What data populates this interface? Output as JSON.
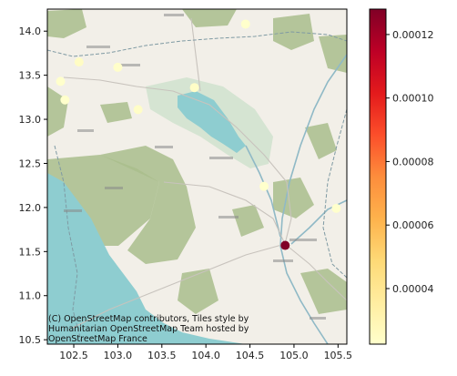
{
  "chart_data": {
    "type": "scatter",
    "title": "",
    "xlabel": "",
    "ylabel": "",
    "xlim": [
      102.2,
      105.6
    ],
    "ylim": [
      10.45,
      14.25
    ],
    "x_ticks": [
      "102.5",
      "103.0",
      "103.5",
      "104.0",
      "104.5",
      "105.0",
      "105.5"
    ],
    "y_ticks": [
      "10.5",
      "11.0",
      "11.5",
      "12.0",
      "12.5",
      "13.0",
      "13.5",
      "14.0"
    ],
    "x_tick_values": [
      102.5,
      103.0,
      103.5,
      104.0,
      104.5,
      105.0,
      105.5
    ],
    "y_tick_values": [
      10.5,
      11.0,
      11.5,
      12.0,
      12.5,
      13.0,
      13.5,
      14.0
    ],
    "points": [
      {
        "x": 102.35,
        "y": 13.43,
        "value": 2.2e-05
      },
      {
        "x": 102.4,
        "y": 13.22,
        "value": 2.1e-05
      },
      {
        "x": 102.56,
        "y": 13.65,
        "value": 2.5e-05
      },
      {
        "x": 103.0,
        "y": 13.59,
        "value": 2.3e-05
      },
      {
        "x": 103.23,
        "y": 13.11,
        "value": 2.4e-05
      },
      {
        "x": 103.87,
        "y": 13.36,
        "value": 2.4e-05
      },
      {
        "x": 104.45,
        "y": 14.08,
        "value": 2.2e-05
      },
      {
        "x": 104.66,
        "y": 12.24,
        "value": 2.1e-05
      },
      {
        "x": 105.48,
        "y": 11.99,
        "value": 2.2e-05
      },
      {
        "x": 104.9,
        "y": 11.57,
        "value": 0.000128
      }
    ],
    "colorbar": {
      "colormap": "YlOrRd",
      "range": [
        2.25e-05,
        0.000128
      ],
      "tick_values": [
        4e-05,
        6e-05,
        8e-05,
        0.0001,
        0.00012
      ],
      "tick_labels": [
        "0.00004",
        "0.00006",
        "0.00008",
        "0.00010",
        "0.00012"
      ]
    },
    "grid": false,
    "legend": "none",
    "basemap": "OpenStreetMap HOT",
    "attribution": [
      "(C) OpenStreetMap contributors, Tiles style by",
      "Humanitarian OpenStreetMap Team hosted by",
      "OpenStreetMap France"
    ]
  },
  "colors": {
    "land": "#f2efe8",
    "forest": "#a9bd8c",
    "water": "#8ecdd0",
    "wetland": "#d5e4d2",
    "road": "#c8c3bd",
    "border": "#7f9aa3"
  }
}
